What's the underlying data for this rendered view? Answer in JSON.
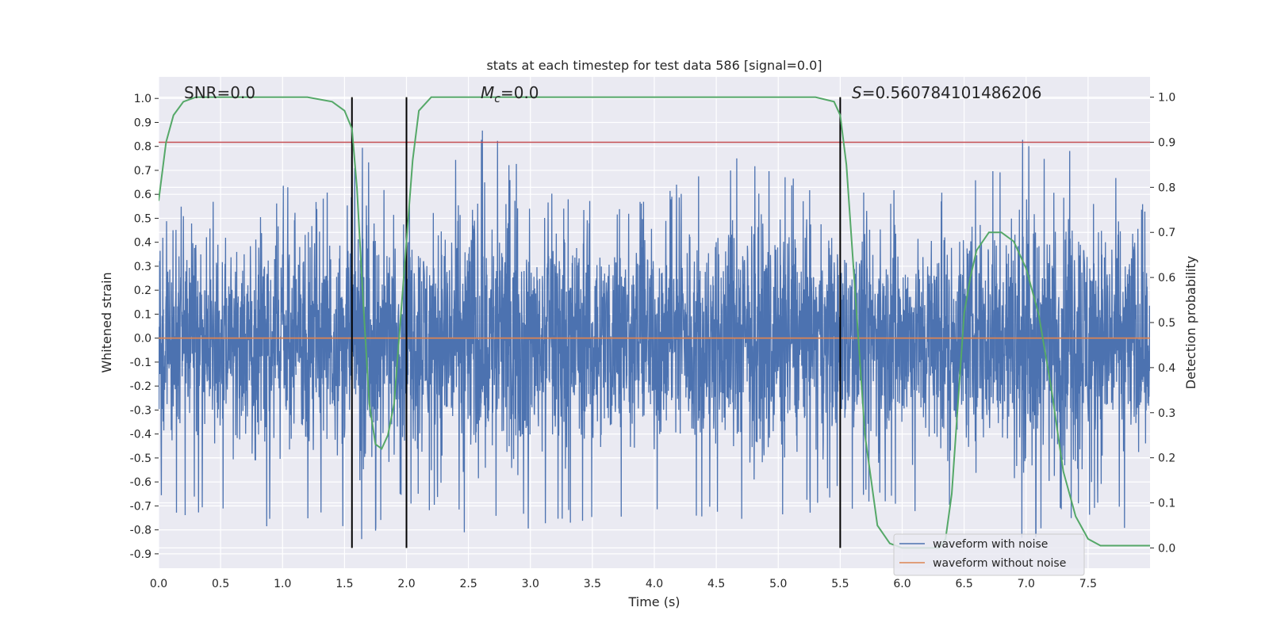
{
  "chart_data": {
    "type": "line",
    "title": "stats at each timestep for test data 586 [signal=0.0]",
    "xlabel": "Time (s)",
    "ylabel": "Whitened strain",
    "y2label": "Detection probability",
    "xlim": [
      0.0,
      8.0
    ],
    "ylim": [
      -0.96,
      1.09
    ],
    "y2lim": [
      -0.045,
      1.045
    ],
    "xticks": [
      "0.0",
      "0.5",
      "1.0",
      "1.5",
      "2.0",
      "2.5",
      "3.0",
      "3.5",
      "4.0",
      "4.5",
      "5.0",
      "5.5",
      "6.0",
      "6.5",
      "7.0",
      "7.5"
    ],
    "yticks": [
      "-0.9",
      "-0.8",
      "-0.7",
      "-0.6",
      "-0.5",
      "-0.4",
      "-0.3",
      "-0.2",
      "-0.1",
      "0.0",
      "0.1",
      "0.2",
      "0.3",
      "0.4",
      "0.5",
      "0.6",
      "0.7",
      "0.8",
      "0.9",
      "1.0"
    ],
    "y2ticks": [
      "0.0",
      "0.1",
      "0.2",
      "0.3",
      "0.4",
      "0.5",
      "0.6",
      "0.7",
      "0.8",
      "0.9",
      "1.0"
    ],
    "grid": true,
    "legend_position": "bottom-right",
    "annotations": [
      {
        "id": "snr",
        "text": "SNR=0.0"
      },
      {
        "id": "mc",
        "text": "=0.0",
        "symbol": "M",
        "subscript": "c"
      },
      {
        "id": "s",
        "text": "=0.560784101486206",
        "symbol": "S"
      }
    ],
    "vertical_lines_x": [
      1.56,
      2.0,
      5.5
    ],
    "threshold_y2": 0.9,
    "colors": {
      "noise": "#4c72b0",
      "clean": "#dd8452",
      "probability": "#55a868",
      "threshold": "#c44e52",
      "background": "#eaeaf2",
      "grid": "#ffffff",
      "vline": "#000000"
    },
    "noise_envelope": {
      "x": [
        0.0,
        0.5,
        1.0,
        1.5,
        1.56,
        2.0,
        2.5,
        3.0,
        3.5,
        4.0,
        4.5,
        5.0,
        5.5,
        6.0,
        6.5,
        7.0,
        7.5,
        8.0
      ],
      "upper": [
        0.55,
        0.64,
        0.65,
        0.6,
        0.86,
        0.63,
        1.0,
        0.65,
        0.6,
        0.58,
        0.84,
        0.7,
        0.62,
        0.65,
        0.68,
        0.86,
        0.92,
        0.55
      ],
      "lower": [
        -0.77,
        -0.75,
        -0.8,
        -0.8,
        -0.87,
        -0.74,
        -0.85,
        -0.8,
        -0.77,
        -0.75,
        -0.75,
        -0.76,
        -0.72,
        -0.73,
        -0.72,
        -0.85,
        -0.8,
        -0.84
      ]
    },
    "series": [
      {
        "name": "waveform with noise",
        "note": "noisy whitened strain fluctuating about zero, roughly within the envelope above"
      },
      {
        "name": "waveform without noise",
        "x": [
          0.0,
          8.0
        ],
        "values": [
          0.0,
          0.0
        ]
      },
      {
        "axis": "y2",
        "x": [
          0.0,
          0.06,
          0.12,
          0.2,
          0.3,
          0.4,
          1.2,
          1.4,
          1.5,
          1.56,
          1.6,
          1.65,
          1.7,
          1.75,
          1.8,
          1.85,
          1.9,
          1.95,
          2.0,
          2.05,
          2.1,
          2.2,
          2.4,
          4.0,
          5.3,
          5.45,
          5.5,
          5.55,
          5.6,
          5.7,
          5.8,
          5.9,
          6.0,
          6.3,
          6.35,
          6.4,
          6.45,
          6.5,
          6.55,
          6.6,
          6.7,
          6.8,
          6.9,
          7.0,
          7.1,
          7.2,
          7.3,
          7.4,
          7.5,
          7.6,
          8.0
        ],
        "values": [
          0.77,
          0.9,
          0.96,
          0.99,
          1.0,
          1.0,
          1.0,
          0.99,
          0.97,
          0.93,
          0.8,
          0.55,
          0.32,
          0.23,
          0.22,
          0.25,
          0.32,
          0.5,
          0.68,
          0.86,
          0.97,
          1.0,
          1.0,
          1.0,
          1.0,
          0.99,
          0.96,
          0.85,
          0.65,
          0.25,
          0.05,
          0.01,
          0.0,
          0.0,
          0.02,
          0.12,
          0.32,
          0.52,
          0.6,
          0.66,
          0.7,
          0.7,
          0.68,
          0.62,
          0.52,
          0.36,
          0.17,
          0.07,
          0.02,
          0.005,
          0.005
        ]
      }
    ]
  }
}
